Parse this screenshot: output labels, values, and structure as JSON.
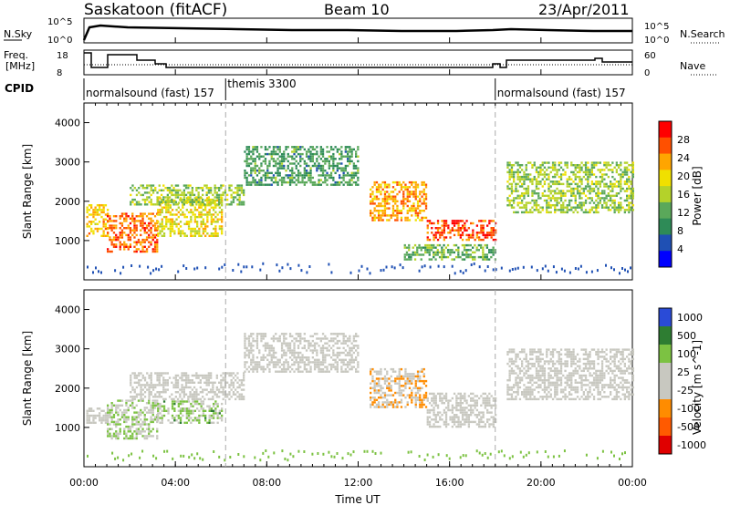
{
  "header": {
    "station": "Saskatoon (fitACF)",
    "beam": "Beam 10",
    "date": "23/Apr/2011"
  },
  "top_panel": {
    "left_label": "N.Sky",
    "left_ticks": [
      "10^5",
      "10^0"
    ],
    "right_label": "N.Search",
    "right_ticks": [
      "10^5",
      "10^0"
    ]
  },
  "freq_panel": {
    "left_label_1": "Freq.",
    "left_label_2": "[MHz]",
    "left_ticks": [
      "18",
      "8"
    ],
    "right_label": "Nave",
    "right_ticks": [
      "60",
      "0"
    ]
  },
  "cpid": {
    "label": "CPID",
    "segments": [
      {
        "text": "normalsound (fast) 157",
        "start_hour": 0.0
      },
      {
        "text": "themis 3300",
        "start_hour": 6.2
      },
      {
        "text": "normalsound (fast) 157",
        "start_hour": 18.0
      }
    ]
  },
  "xaxis": {
    "title": "Time UT",
    "ticks": [
      "00:00",
      "04:00",
      "08:00",
      "12:00",
      "16:00",
      "20:00",
      "00:00"
    ]
  },
  "colors": {
    "power_scale": [
      "#0000ff",
      "#1f50b4",
      "#2e8b57",
      "#5aa85a",
      "#b4d22a",
      "#f0e000",
      "#ffa500",
      "#ff5000",
      "#ff0000"
    ],
    "velocity_scale": [
      "#2a4bd7",
      "#2e7d32",
      "#7cc242",
      "#c8c8c0",
      "#c8c8c0",
      "#ff8c00",
      "#ff5a00",
      "#e00000"
    ]
  },
  "chart_data": [
    {
      "type": "heatmap",
      "title": "Power",
      "xlabel": "Time UT",
      "ylabel": "Slant Range [km]",
      "xlim": [
        0,
        24
      ],
      "ylim": [
        0,
        4500
      ],
      "yticks": [
        "1000",
        "2000",
        "3000",
        "4000"
      ],
      "colorbar": {
        "label": "Power [dB]",
        "ticks": [
          "4",
          "8",
          "12",
          "16",
          "20",
          "24",
          "28"
        ],
        "range": [
          0,
          30
        ]
      },
      "bands": [
        {
          "t0": 0.1,
          "t1": 1.0,
          "r0": 1100,
          "r1": 1900,
          "v": 20
        },
        {
          "t0": 1.0,
          "t1": 3.2,
          "r0": 700,
          "r1": 1700,
          "v": 24
        },
        {
          "t0": 3.2,
          "t1": 6.0,
          "r0": 1100,
          "r1": 2100,
          "v": 18
        },
        {
          "t0": 2.0,
          "t1": 7.0,
          "r0": 1900,
          "r1": 2400,
          "v": 14
        },
        {
          "t0": 7.0,
          "t1": 12.0,
          "r0": 2400,
          "r1": 3400,
          "v": 10
        },
        {
          "t0": 12.5,
          "t1": 15.0,
          "r0": 1500,
          "r1": 2500,
          "v": 22
        },
        {
          "t0": 15.0,
          "t1": 18.0,
          "r0": 1000,
          "r1": 1500,
          "v": 26
        },
        {
          "t0": 14.0,
          "t1": 18.0,
          "r0": 500,
          "r1": 900,
          "v": 12
        },
        {
          "t0": 18.5,
          "t1": 24.0,
          "r0": 1700,
          "r1": 3000,
          "v": 14
        }
      ]
    },
    {
      "type": "heatmap",
      "title": "Velocity",
      "xlabel": "Time UT",
      "ylabel": "Slant Range [km]",
      "xlim": [
        0,
        24
      ],
      "ylim": [
        0,
        4500
      ],
      "yticks": [
        "1000",
        "2000",
        "3000",
        "4000"
      ],
      "colorbar": {
        "label": "Velocity [m s^-1]",
        "ticks": [
          "1000",
          "500",
          "100",
          "25",
          "-25",
          "-100",
          "-500",
          "-1000"
        ],
        "range": [
          -1000,
          1000
        ]
      },
      "bands": [
        {
          "t0": 0.1,
          "t1": 1.0,
          "r0": 1100,
          "r1": 1500,
          "v": 0
        },
        {
          "t0": 1.0,
          "t1": 3.2,
          "r0": 700,
          "r1": 1700,
          "v": 250
        },
        {
          "t0": 3.2,
          "t1": 6.0,
          "r0": 1100,
          "r1": 1700,
          "v": 300
        },
        {
          "t0": 2.0,
          "t1": 7.0,
          "r0": 1700,
          "r1": 2400,
          "v": 0
        },
        {
          "t0": 7.0,
          "t1": 12.0,
          "r0": 2400,
          "r1": 3400,
          "v": 0
        },
        {
          "t0": 12.5,
          "t1": 15.0,
          "r0": 1500,
          "r1": 2500,
          "v": -200
        },
        {
          "t0": 15.0,
          "t1": 18.0,
          "r0": 1000,
          "r1": 1900,
          "v": 0
        },
        {
          "t0": 18.5,
          "t1": 24.0,
          "r0": 1700,
          "r1": 3000,
          "v": 0
        }
      ]
    }
  ]
}
